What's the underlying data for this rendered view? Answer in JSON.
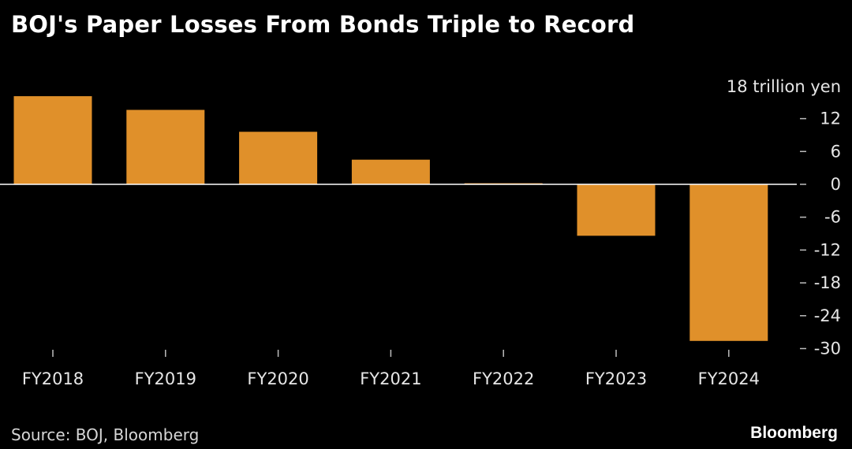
{
  "chart_data": {
    "type": "bar",
    "title": "BOJ's Paper Losses From Bonds Triple to Record",
    "categories": [
      "FY2018",
      "FY2019",
      "FY2020",
      "FY2021",
      "FY2022",
      "FY2023",
      "FY2024"
    ],
    "values": [
      16.1,
      13.6,
      9.6,
      4.5,
      0.2,
      -9.4,
      -28.6
    ],
    "yunit": "18 trillion yen",
    "yticks": [
      12,
      6,
      0,
      -6,
      -12,
      -18,
      -24,
      -30
    ],
    "ytick_labels": [
      "12",
      "6",
      "0",
      "-6",
      "-12",
      "-18",
      "-24",
      "-30"
    ],
    "ylim": [
      -30,
      18
    ],
    "yaxis_side": "right",
    "grid": false,
    "zero_line": true,
    "legend": "none"
  },
  "source": "Source: BOJ, Bloomberg",
  "brand": "Bloomberg",
  "colors": {
    "background": "#000000",
    "bar": "#e0902a",
    "axis_text": "#e6e6e6",
    "zero_line": "#ffffff",
    "tick": "#bdbdbd"
  }
}
